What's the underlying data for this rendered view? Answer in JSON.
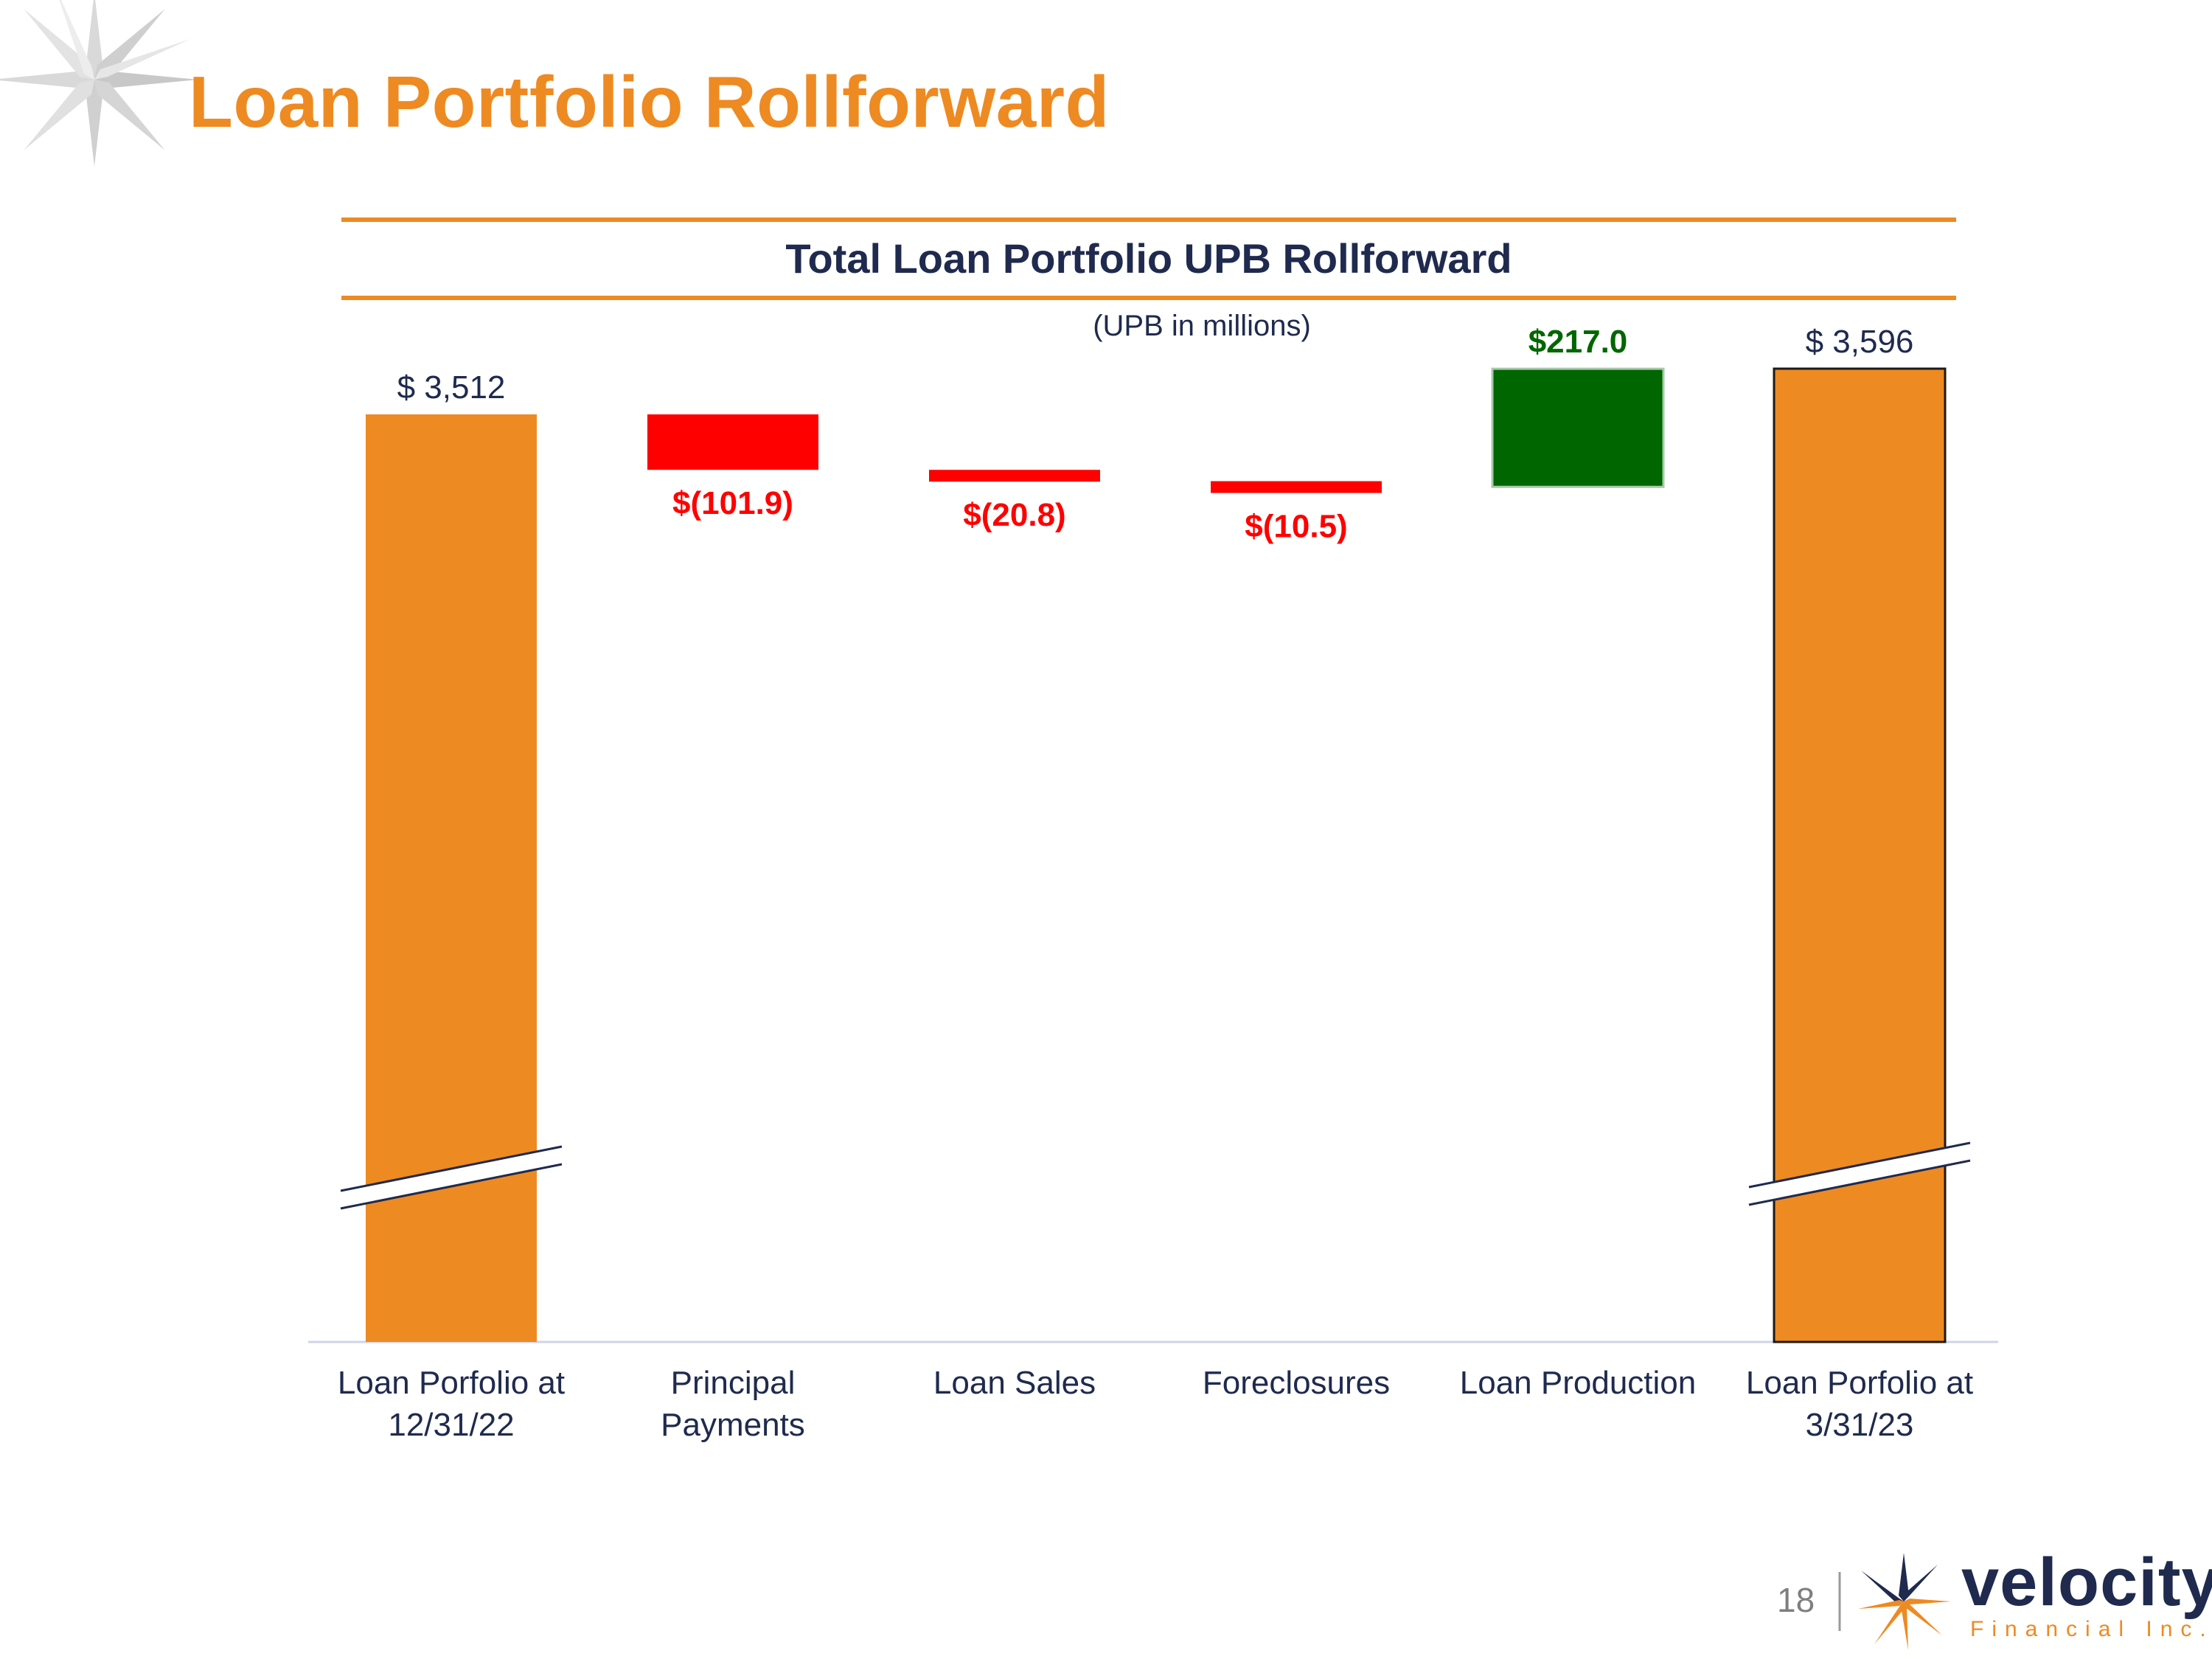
{
  "slide": {
    "title": "Loan Portfolio Rollforward",
    "page_number": "18",
    "logo_text": "velocity",
    "logo_subtext": "Financial Inc."
  },
  "colors": {
    "title": "#EE8A22",
    "rule": "#EE8A22",
    "navy": "#1F2A4E",
    "total": "#EE8A22",
    "decrease": "#FF0000",
    "increase": "#006600"
  },
  "chart_data": {
    "type": "bar",
    "subtype": "waterfall",
    "title": "Total Loan Portfolio UPB Rollforward",
    "subtitle": "(UPB in millions)",
    "units": "millions",
    "categories": [
      [
        "Loan Porfolio at",
        "12/31/22"
      ],
      [
        "Principal",
        "Payments"
      ],
      [
        "Loan Sales"
      ],
      [
        "Foreclosures"
      ],
      [
        "Loan Production"
      ],
      [
        "Loan Porfolio at",
        "3/31/23"
      ]
    ],
    "values": [
      3512,
      -101.9,
      -20.8,
      -10.5,
      217.0,
      3596
    ],
    "kinds": [
      "total",
      "decrease",
      "decrease",
      "decrease",
      "increase",
      "total"
    ],
    "value_labels": [
      "$ 3,512",
      "$(101.9)",
      "$(20.8)",
      "$(10.5)",
      "$217.0",
      "$ 3,596"
    ],
    "axis_break": true,
    "grid": false
  }
}
